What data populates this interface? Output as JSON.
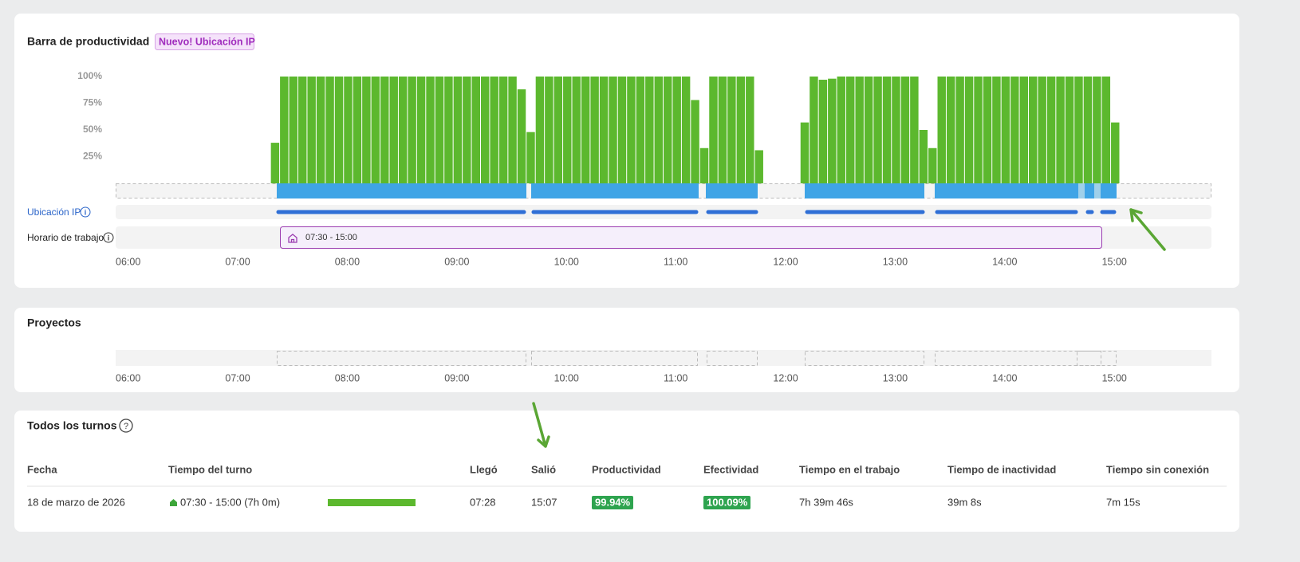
{
  "chart_data": {
    "type": "bar",
    "title": "Barra de productividad",
    "badge": "Nuevo! Ubicación IP",
    "color": "#5cb82e",
    "x": [
      "07:25",
      "07:30",
      "07:35",
      "07:40",
      "07:45",
      "07:50",
      "07:55",
      "08:00",
      "08:05",
      "08:10",
      "08:15",
      "08:20",
      "08:25",
      "08:30",
      "08:35",
      "08:40",
      "08:45",
      "08:50",
      "08:55",
      "09:00",
      "09:05",
      "09:10",
      "09:15",
      "09:20",
      "09:25",
      "09:30",
      "09:35",
      "09:40",
      "09:45",
      "09:50",
      "09:55",
      "10:00",
      "10:05",
      "10:10",
      "10:15",
      "10:20",
      "10:25",
      "10:30",
      "10:35",
      "10:40",
      "10:45",
      "10:50",
      "10:55",
      "11:00",
      "11:05",
      "11:10",
      "11:15",
      "11:20",
      "11:25",
      "11:30",
      "11:35",
      "11:40",
      "11:45",
      "11:50",
      "12:15",
      "12:20",
      "12:25",
      "12:30",
      "12:35",
      "12:40",
      "12:45",
      "12:50",
      "12:55",
      "13:00",
      "13:05",
      "13:10",
      "13:15",
      "13:20",
      "13:25",
      "13:30",
      "13:35",
      "13:40",
      "13:45",
      "13:50",
      "13:55",
      "14:00",
      "14:05",
      "14:10",
      "14:15",
      "14:20",
      "14:25",
      "14:30",
      "14:35",
      "14:40",
      "14:45",
      "14:50",
      "14:55",
      "15:00",
      "15:05"
    ],
    "values": [
      38,
      100,
      100,
      100,
      100,
      100,
      100,
      100,
      100,
      100,
      100,
      100,
      100,
      100,
      100,
      100,
      100,
      100,
      100,
      100,
      100,
      100,
      100,
      100,
      100,
      100,
      100,
      88,
      48,
      100,
      100,
      100,
      100,
      100,
      100,
      100,
      100,
      100,
      100,
      100,
      100,
      100,
      100,
      100,
      100,
      100,
      78,
      33,
      100,
      100,
      100,
      100,
      100,
      31,
      57,
      100,
      97,
      98,
      100,
      100,
      100,
      100,
      100,
      100,
      100,
      100,
      100,
      50,
      33,
      100,
      100,
      100,
      100,
      100,
      100,
      100,
      100,
      100,
      100,
      100,
      100,
      100,
      100,
      100,
      100,
      100,
      100,
      100,
      57
    ],
    "xlim": [
      "06:00",
      "16:00"
    ],
    "xticks": [
      "06:00",
      "07:00",
      "08:00",
      "09:00",
      "10:00",
      "11:00",
      "12:00",
      "13:00",
      "14:00",
      "15:00"
    ],
    "ylim": [
      0,
      100
    ],
    "yticks": [
      {
        "value": 25,
        "label": "25%"
      },
      {
        "value": 50,
        "label": "50%"
      },
      {
        "value": 75,
        "label": "75%"
      },
      {
        "value": 100,
        "label": "100%"
      }
    ],
    "ip_label": "Ubicación IP",
    "schedule_label": "Horario de trabajo",
    "schedule": "07:30 - 15:00"
  },
  "projects": {
    "title": "Proyectos"
  },
  "shifts": {
    "title": "Todos los turnos",
    "columns": [
      "Fecha",
      "Tiempo del turno",
      "Llegó",
      "Salió",
      "Productividad",
      "Efectividad",
      "Tiempo en el trabajo",
      "Tiempo de inactividad",
      "Tiempo sin conexión"
    ],
    "rows": [
      [
        "18 de marzo de 2026",
        "07:30 - 15:00 (7h 0m)",
        "07:28",
        "15:07",
        "99.94%",
        "100.09%",
        "7h 39m 46s",
        "39m 8s",
        "7m 15s"
      ]
    ]
  }
}
